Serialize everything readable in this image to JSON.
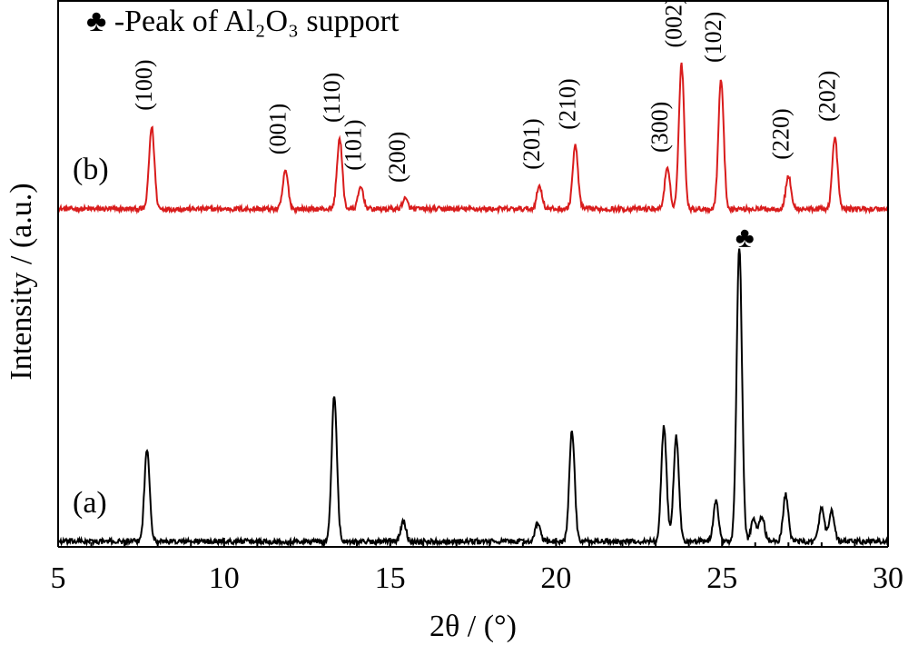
{
  "chart_data": {
    "type": "line",
    "title": "",
    "xlabel": "2θ / (°)",
    "ylabel": "Intensity / (a.u.)",
    "xlim": [
      5,
      30
    ],
    "xticks": [
      5,
      10,
      15,
      20,
      25,
      30
    ],
    "xtick_labels": [
      "5",
      "10",
      "15",
      "20",
      "25",
      "30"
    ],
    "grid": false,
    "legend": {
      "position": "top-left",
      "text": "♣ -Peak of Al₂O₃ support"
    },
    "series": [
      {
        "name": "(b)",
        "color": "#d91c1c",
        "baseline": 0.73,
        "peaks": [
          {
            "x": 7.82,
            "y": 0.82,
            "label": "(100)"
          },
          {
            "x": 11.85,
            "y": 0.38,
            "label": "(001)"
          },
          {
            "x": 13.48,
            "y": 0.7,
            "label": "(110)"
          },
          {
            "x": 14.12,
            "y": 0.22,
            "label": "(101)"
          },
          {
            "x": 15.45,
            "y": 0.1,
            "label": "(200)"
          },
          {
            "x": 19.5,
            "y": 0.23,
            "label": "(201)"
          },
          {
            "x": 20.58,
            "y": 0.63,
            "label": "(210)"
          },
          {
            "x": 23.35,
            "y": 0.4,
            "label": "(300)"
          },
          {
            "x": 23.78,
            "y": 1.45,
            "label": "(002)"
          },
          {
            "x": 24.97,
            "y": 1.3,
            "label": "(102)"
          },
          {
            "x": 27.0,
            "y": 0.33,
            "label": "(220)"
          },
          {
            "x": 28.4,
            "y": 0.71,
            "label": "(202)"
          }
        ]
      },
      {
        "name": "(a)",
        "color": "#000000",
        "baseline": 0.0,
        "peaks": [
          {
            "x": 7.68,
            "y": 0.92
          },
          {
            "x": 13.32,
            "y": 1.45
          },
          {
            "x": 15.4,
            "y": 0.2
          },
          {
            "x": 19.45,
            "y": 0.18
          },
          {
            "x": 20.48,
            "y": 1.1
          },
          {
            "x": 23.25,
            "y": 1.15
          },
          {
            "x": 23.62,
            "y": 1.05
          },
          {
            "x": 24.82,
            "y": 0.4
          },
          {
            "x": 25.52,
            "y": 2.95
          },
          {
            "x": 25.95,
            "y": 0.22
          },
          {
            "x": 26.2,
            "y": 0.25
          },
          {
            "x": 26.92,
            "y": 0.47
          },
          {
            "x": 28.0,
            "y": 0.33
          },
          {
            "x": 28.3,
            "y": 0.3
          }
        ]
      }
    ],
    "annotations": [
      {
        "text": "♣",
        "x": 25.52
      }
    ]
  }
}
